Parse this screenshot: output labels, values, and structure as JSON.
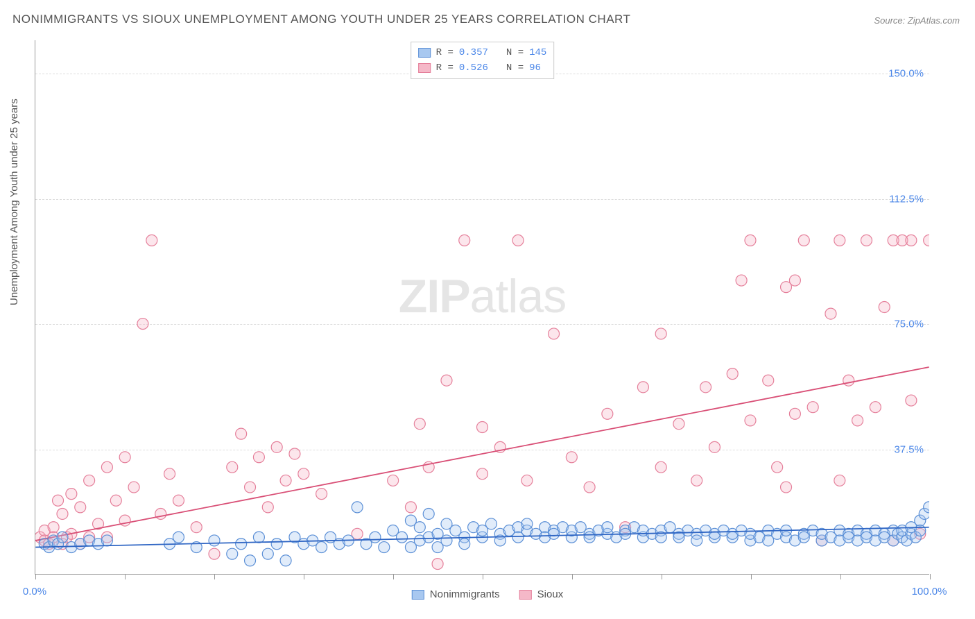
{
  "title": "NONIMMIGRANTS VS SIOUX UNEMPLOYMENT AMONG YOUTH UNDER 25 YEARS CORRELATION CHART",
  "source": "Source: ZipAtlas.com",
  "y_axis_label": "Unemployment Among Youth under 25 years",
  "watermark": {
    "zip": "ZIP",
    "atlas": "atlas"
  },
  "chart": {
    "type": "scatter",
    "background_color": "#ffffff",
    "grid_color": "#dddddd",
    "axis_color": "#999999",
    "xlim": [
      0,
      100
    ],
    "ylim": [
      0,
      160
    ],
    "x_ticks": [
      0,
      10,
      20,
      30,
      40,
      50,
      60,
      70,
      80,
      90,
      100
    ],
    "x_tick_labels_shown": [
      {
        "pos": 0,
        "label": "0.0%"
      },
      {
        "pos": 100,
        "label": "100.0%"
      }
    ],
    "y_ticks": [
      {
        "pos": 37.5,
        "label": "37.5%"
      },
      {
        "pos": 75.0,
        "label": "75.0%"
      },
      {
        "pos": 112.5,
        "label": "112.5%"
      },
      {
        "pos": 150.0,
        "label": "150.0%"
      }
    ],
    "label_color": "#4a86e8",
    "label_fontsize": 15,
    "marker_radius": 8,
    "marker_fill_opacity": 0.35,
    "marker_stroke_width": 1.2,
    "trend_line_width": 1.8,
    "series": {
      "nonimmigrants": {
        "label": "Nonimmigrants",
        "fill": "#a8c8f0",
        "stroke": "#5b8fd6",
        "trend_color": "#2f66c4",
        "R": "0.357",
        "N": "145",
        "trend": {
          "x1": 0,
          "y1": 8,
          "x2": 100,
          "y2": 14
        },
        "points": [
          [
            1,
            9
          ],
          [
            1.5,
            8
          ],
          [
            2,
            10
          ],
          [
            2.5,
            9
          ],
          [
            3,
            11
          ],
          [
            4,
            8
          ],
          [
            5,
            9
          ],
          [
            6,
            10
          ],
          [
            7,
            9
          ],
          [
            8,
            10
          ],
          [
            15,
            9
          ],
          [
            16,
            11
          ],
          [
            18,
            8
          ],
          [
            20,
            10
          ],
          [
            22,
            6
          ],
          [
            23,
            9
          ],
          [
            24,
            4
          ],
          [
            25,
            11
          ],
          [
            26,
            6
          ],
          [
            27,
            9
          ],
          [
            28,
            4
          ],
          [
            29,
            11
          ],
          [
            30,
            9
          ],
          [
            31,
            10
          ],
          [
            32,
            8
          ],
          [
            33,
            11
          ],
          [
            34,
            9
          ],
          [
            35,
            10
          ],
          [
            36,
            20
          ],
          [
            37,
            9
          ],
          [
            38,
            11
          ],
          [
            39,
            8
          ],
          [
            40,
            13
          ],
          [
            41,
            11
          ],
          [
            42,
            16
          ],
          [
            42,
            8
          ],
          [
            43,
            14
          ],
          [
            43,
            10
          ],
          [
            44,
            18
          ],
          [
            44,
            11
          ],
          [
            45,
            12
          ],
          [
            45,
            8
          ],
          [
            46,
            15
          ],
          [
            46,
            10
          ],
          [
            47,
            13
          ],
          [
            48,
            11
          ],
          [
            48,
            9
          ],
          [
            49,
            14
          ],
          [
            50,
            11
          ],
          [
            50,
            13
          ],
          [
            51,
            15
          ],
          [
            52,
            12
          ],
          [
            52,
            10
          ],
          [
            53,
            13
          ],
          [
            54,
            14
          ],
          [
            54,
            11
          ],
          [
            55,
            13
          ],
          [
            55,
            15
          ],
          [
            56,
            12
          ],
          [
            57,
            14
          ],
          [
            57,
            11
          ],
          [
            58,
            13
          ],
          [
            58,
            12
          ],
          [
            59,
            14
          ],
          [
            60,
            11
          ],
          [
            60,
            13
          ],
          [
            61,
            14
          ],
          [
            62,
            12
          ],
          [
            62,
            11
          ],
          [
            63,
            13
          ],
          [
            64,
            12
          ],
          [
            64,
            14
          ],
          [
            65,
            11
          ],
          [
            66,
            13
          ],
          [
            66,
            12
          ],
          [
            67,
            14
          ],
          [
            68,
            11
          ],
          [
            68,
            13
          ],
          [
            69,
            12
          ],
          [
            70,
            13
          ],
          [
            70,
            11
          ],
          [
            71,
            14
          ],
          [
            72,
            12
          ],
          [
            72,
            11
          ],
          [
            73,
            13
          ],
          [
            74,
            12
          ],
          [
            74,
            10
          ],
          [
            75,
            13
          ],
          [
            76,
            11
          ],
          [
            76,
            12
          ],
          [
            77,
            13
          ],
          [
            78,
            11
          ],
          [
            78,
            12
          ],
          [
            79,
            13
          ],
          [
            80,
            10
          ],
          [
            80,
            12
          ],
          [
            81,
            11
          ],
          [
            82,
            13
          ],
          [
            82,
            10
          ],
          [
            83,
            12
          ],
          [
            84,
            11
          ],
          [
            84,
            13
          ],
          [
            85,
            10
          ],
          [
            86,
            12
          ],
          [
            86,
            11
          ],
          [
            87,
            13
          ],
          [
            88,
            10
          ],
          [
            88,
            12
          ],
          [
            89,
            11
          ],
          [
            90,
            13
          ],
          [
            90,
            10
          ],
          [
            91,
            12
          ],
          [
            91,
            11
          ],
          [
            92,
            13
          ],
          [
            92,
            10
          ],
          [
            93,
            12
          ],
          [
            93,
            11
          ],
          [
            94,
            13
          ],
          [
            94,
            10
          ],
          [
            95,
            12
          ],
          [
            95,
            11
          ],
          [
            96,
            13
          ],
          [
            96,
            10
          ],
          [
            96.5,
            12
          ],
          [
            97,
            11
          ],
          [
            97,
            13
          ],
          [
            97.5,
            10
          ],
          [
            98,
            12
          ],
          [
            98,
            14
          ],
          [
            98.5,
            11
          ],
          [
            99,
            16
          ],
          [
            99,
            13
          ],
          [
            99.5,
            18
          ],
          [
            100,
            20
          ]
        ]
      },
      "sioux": {
        "label": "Sioux",
        "fill": "#f5b8c8",
        "stroke": "#e57f9a",
        "trend_color": "#d94f76",
        "R": "0.526",
        "N": "96",
        "trend": {
          "x1": 0,
          "y1": 10,
          "x2": 100,
          "y2": 62
        },
        "points": [
          [
            0.5,
            11
          ],
          [
            1,
            13
          ],
          [
            1,
            10
          ],
          [
            1.5,
            9
          ],
          [
            2,
            14
          ],
          [
            2,
            11
          ],
          [
            2.5,
            22
          ],
          [
            3,
            9
          ],
          [
            3,
            18
          ],
          [
            3.5,
            11
          ],
          [
            4,
            12
          ],
          [
            4,
            24
          ],
          [
            5,
            9
          ],
          [
            5,
            20
          ],
          [
            6,
            11
          ],
          [
            6,
            28
          ],
          [
            7,
            15
          ],
          [
            8,
            11
          ],
          [
            8,
            32
          ],
          [
            9,
            22
          ],
          [
            10,
            35
          ],
          [
            10,
            16
          ],
          [
            11,
            26
          ],
          [
            12,
            75
          ],
          [
            13,
            100
          ],
          [
            14,
            18
          ],
          [
            15,
            30
          ],
          [
            16,
            22
          ],
          [
            18,
            14
          ],
          [
            20,
            6
          ],
          [
            22,
            32
          ],
          [
            23,
            42
          ],
          [
            24,
            26
          ],
          [
            25,
            35
          ],
          [
            26,
            20
          ],
          [
            27,
            38
          ],
          [
            28,
            28
          ],
          [
            29,
            36
          ],
          [
            30,
            30
          ],
          [
            32,
            24
          ],
          [
            36,
            12
          ],
          [
            40,
            28
          ],
          [
            42,
            20
          ],
          [
            43,
            45
          ],
          [
            44,
            32
          ],
          [
            45,
            3
          ],
          [
            46,
            58
          ],
          [
            48,
            100
          ],
          [
            50,
            30
          ],
          [
            50,
            44
          ],
          [
            52,
            38
          ],
          [
            54,
            100
          ],
          [
            55,
            28
          ],
          [
            58,
            72
          ],
          [
            60,
            35
          ],
          [
            62,
            26
          ],
          [
            64,
            48
          ],
          [
            66,
            14
          ],
          [
            68,
            56
          ],
          [
            70,
            32
          ],
          [
            70,
            72
          ],
          [
            72,
            45
          ],
          [
            74,
            28
          ],
          [
            75,
            56
          ],
          [
            76,
            38
          ],
          [
            78,
            60
          ],
          [
            79,
            88
          ],
          [
            80,
            46
          ],
          [
            80,
            100
          ],
          [
            82,
            58
          ],
          [
            83,
            32
          ],
          [
            84,
            26
          ],
          [
            84,
            86
          ],
          [
            85,
            48
          ],
          [
            85,
            88
          ],
          [
            86,
            100
          ],
          [
            87,
            50
          ],
          [
            88,
            10
          ],
          [
            89,
            78
          ],
          [
            90,
            28
          ],
          [
            90,
            100
          ],
          [
            91,
            58
          ],
          [
            92,
            46
          ],
          [
            93,
            100
          ],
          [
            94,
            50
          ],
          [
            95,
            80
          ],
          [
            96,
            100
          ],
          [
            96,
            10
          ],
          [
            97,
            100
          ],
          [
            98,
            52
          ],
          [
            98,
            100
          ],
          [
            99,
            12
          ],
          [
            100,
            100
          ]
        ]
      }
    }
  },
  "legend_top": {
    "row1": {
      "r_label": "R =",
      "r_val": "0.357",
      "n_label": "N =",
      "n_val": "145"
    },
    "row2": {
      "r_label": "R =",
      "r_val": "0.526",
      "n_label": "N =",
      "  96": "  96",
      "n_val": " 96"
    }
  },
  "legend_bottom": {
    "nonimmigrants": "Nonimmigrants",
    "sioux": "Sioux"
  }
}
